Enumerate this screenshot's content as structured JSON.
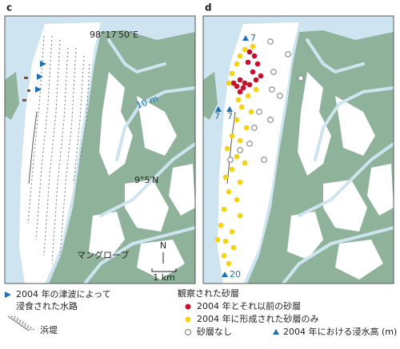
{
  "panels": [
    {
      "label": "c",
      "longitude_label": "98°17′50″E",
      "contour_label": "10 m",
      "latitude_label": "9°5′N",
      "mangrove_label": "マングローブ",
      "north_label": "N",
      "scale_label": "1 km"
    },
    {
      "label": "d",
      "inundation_heights": [
        "7",
        "7",
        "7",
        "20"
      ]
    }
  ],
  "legend": {
    "channel": [
      "2004 年の津波によって",
      "浸食された水路"
    ],
    "beach_ridge": "浜堤",
    "sand_title": "観察された砂層",
    "sand_2004_and_older": "2004 年とそれ以前の砂層",
    "sand_2004_only": "2004 年に形成された砂層のみ",
    "no_sand": "砂層なし",
    "inundation_height": "2004 年における浸水高 (m)"
  }
}
